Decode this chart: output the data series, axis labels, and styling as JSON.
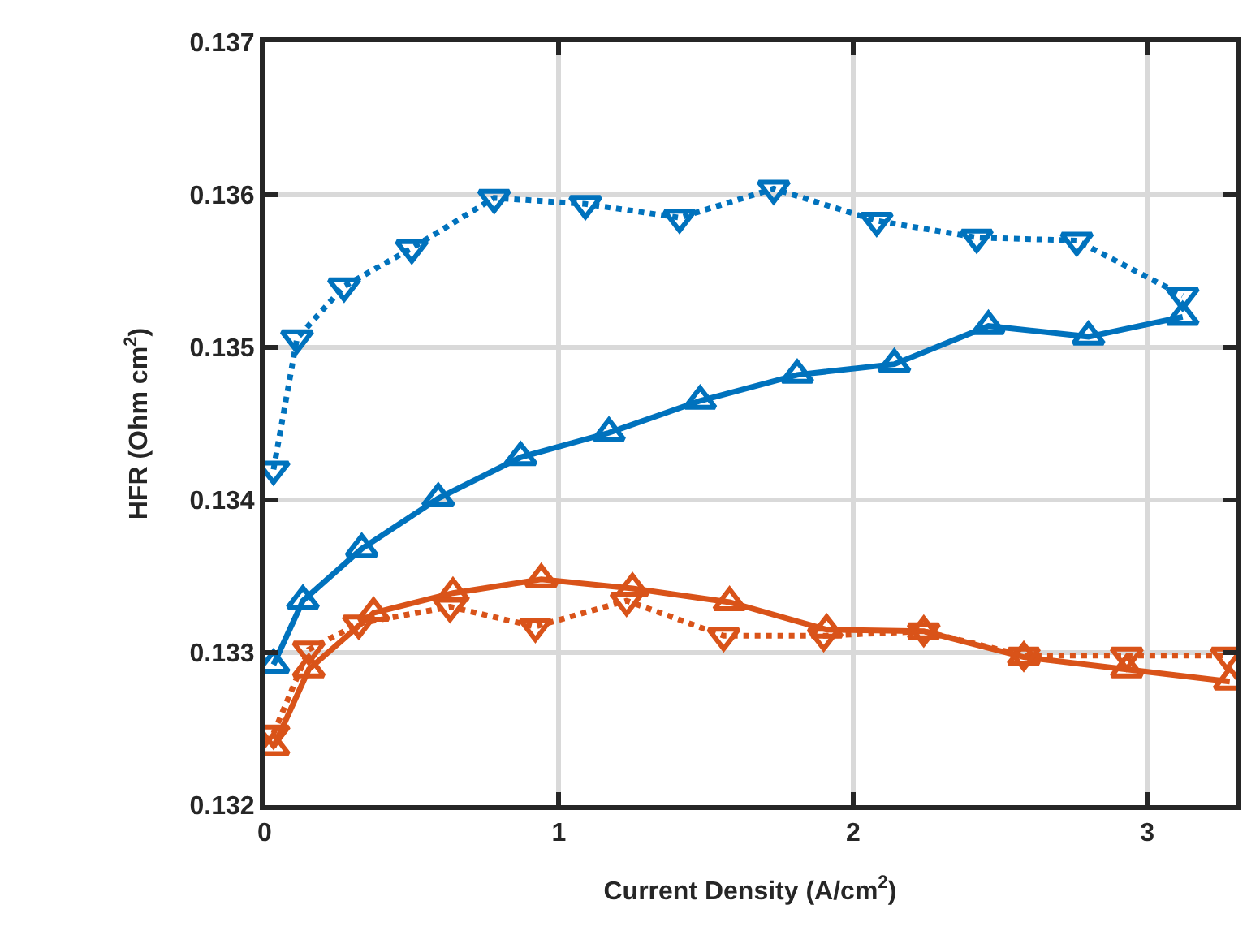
{
  "chart_data": {
    "type": "line",
    "xlabel": "Current Density (A/cm$^{2}$)",
    "ylabel": "HFR (Ohm cm$^{2}$)",
    "xlim": [
      0,
      3.3
    ],
    "xticks": [
      0,
      1,
      2,
      3
    ],
    "ylim": [
      0.132,
      0.137
    ],
    "yticks": [
      0.132,
      0.133,
      0.134,
      0.135,
      0.136,
      0.137
    ],
    "grid": true,
    "series": [
      {
        "color": "#0072bd",
        "marker": "triangle-down",
        "line_style": "dotted",
        "x": [
          0.03,
          0.11,
          0.27,
          0.5,
          0.78,
          1.09,
          1.41,
          1.73,
          2.08,
          2.42,
          2.76,
          3.12
        ],
        "values": [
          0.1342,
          0.13506,
          0.1354,
          0.13565,
          0.13598,
          0.13594,
          0.13585,
          0.13604,
          0.13583,
          0.13572,
          0.1357,
          0.13534
        ]
      },
      {
        "color": "#0072bd",
        "marker": "triangle",
        "line_style": "solid",
        "x": [
          0.03,
          0.13,
          0.33,
          0.59,
          0.87,
          1.17,
          1.48,
          1.81,
          2.14,
          2.46,
          2.8,
          3.12
        ],
        "values": [
          0.13292,
          0.13334,
          0.13368,
          0.13401,
          0.13428,
          0.13444,
          0.13465,
          0.13482,
          0.13489,
          0.13514,
          0.13507,
          0.1352
        ]
      },
      {
        "color": "#d95319",
        "marker": "triangle",
        "line_style": "solid",
        "x": [
          0.03,
          0.15,
          0.37,
          0.64,
          0.94,
          1.25,
          1.58,
          1.91,
          2.24,
          2.58,
          2.93,
          3.28
        ],
        "values": [
          0.13238,
          0.13289,
          0.13326,
          0.13339,
          0.13348,
          0.13342,
          0.13333,
          0.13315,
          0.13314,
          0.13297,
          0.13289,
          0.13281
        ]
      },
      {
        "color": "#d95319",
        "marker": "triangle-down",
        "line_style": "dotted",
        "x": [
          0.03,
          0.15,
          0.32,
          0.63,
          0.92,
          1.23,
          1.56,
          1.9,
          2.24,
          2.58,
          2.93,
          3.27
        ],
        "values": [
          0.13247,
          0.13302,
          0.13319,
          0.1333,
          0.13317,
          0.13334,
          0.13311,
          0.13311,
          0.13314,
          0.13298,
          0.13298,
          0.13298
        ]
      }
    ]
  }
}
